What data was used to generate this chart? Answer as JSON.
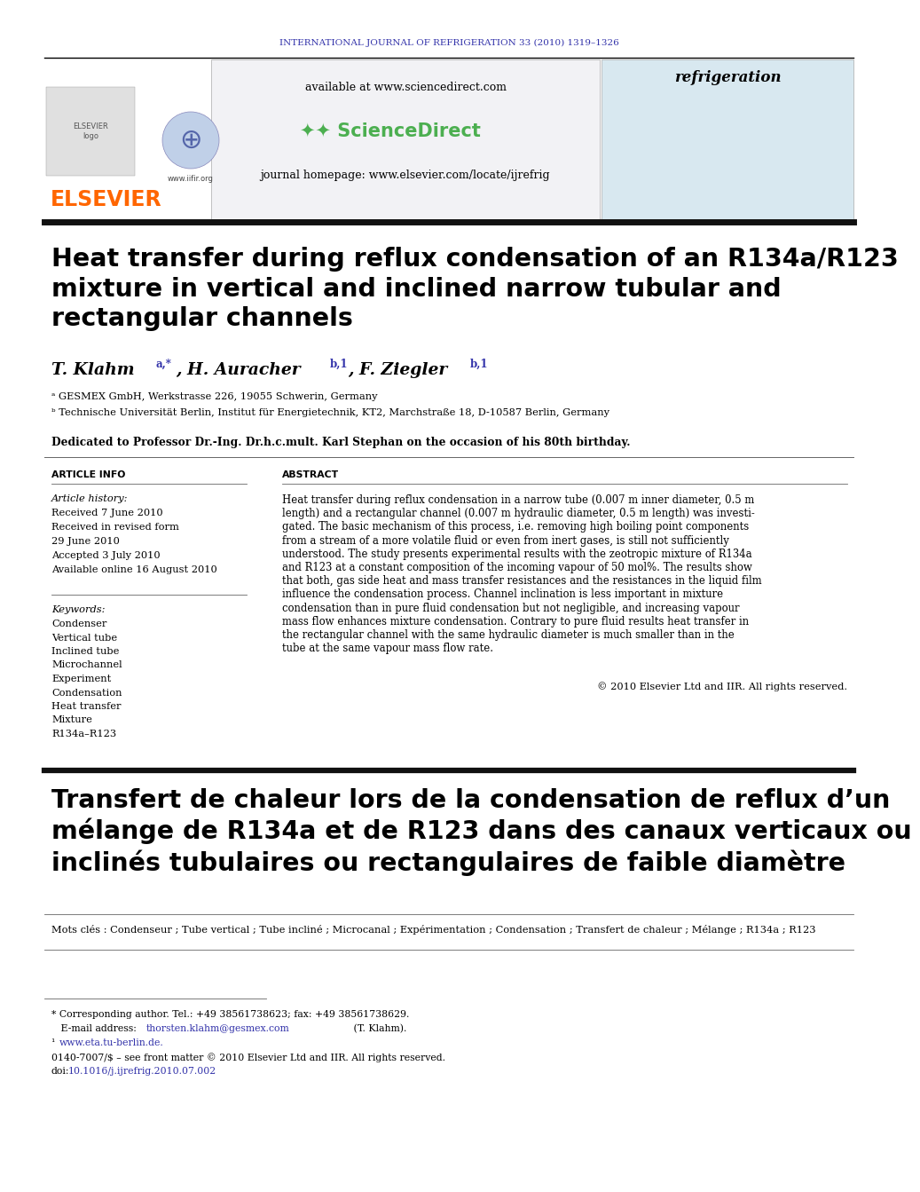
{
  "journal_header": "INTERNATIONAL JOURNAL OF REFRIGERATION 33 (2010) 1319–1326",
  "journal_header_color": "#3333aa",
  "title_en": "Heat transfer during reflux condensation of an R134a/R123\nmixture in vertical and inclined narrow tubular and\nrectangular channels",
  "affiliation_a": "ᵃ GESMEX GmbH, Werkstrasse 226, 19055 Schwerin, Germany",
  "affiliation_b": "ᵇ Technische Universität Berlin, Institut für Energietechnik, KT2, Marchstraße 18, D-10587 Berlin, Germany",
  "dedication": "Dedicated to Professor Dr.-Ing. Dr.h.c.mult. Karl Stephan on the occasion of his 80th birthday.",
  "article_info_label": "ARTICLE INFO",
  "abstract_label": "ABSTRACT",
  "article_history_label": "Article history:",
  "received": "Received 7 June 2010",
  "accepted": "Accepted 3 July 2010",
  "available": "Available online 16 August 2010",
  "keywords_label": "Keywords:",
  "keywords": [
    "Condenser",
    "Vertical tube",
    "Inclined tube",
    "Microchannel",
    "Experiment",
    "Condensation",
    "Heat transfer",
    "Mixture",
    "R134a–R123"
  ],
  "copyright": "© 2010 Elsevier Ltd and IIR. All rights reserved.",
  "title_fr": "Transfert de chaleur lors de la condensation de reflux d’un\nmélange de R134a et de R123 dans des canaux verticaux ou\ninclinés tubulaires ou rectangulaires de faible diamètre",
  "keywords_fr": "Mots clés : Condenseur ; Tube vertical ; Tube incliné ; Microcanal ; Expérimentation ; Condensation ; Transfert de chaleur ; Mélange ; R134a ; R123",
  "footnote_corresponding": "* Corresponding author. Tel.: +49 38561738623; fax: +49 38561738629.",
  "footnote_email_pre": "   E-mail address: ",
  "footnote_email_link": "thorsten.klahm@gesmex.com",
  "footnote_email_post": " (T. Klahm).",
  "footnote_www_pre": "¹ ",
  "footnote_www_link": "www.eta.tu-berlin.de.",
  "footnote_license": "0140-7007/$ – see front matter © 2010 Elsevier Ltd and IIR. All rights reserved.",
  "footnote_doi_pre": "doi:",
  "footnote_doi_link": "10.1016/j.ijrefrig.2010.07.002",
  "elsevier_color": "#FF6600",
  "sciencedirect_color": "#4CAF50",
  "available_url": "available at www.sciencedirect.com",
  "journal_homepage": "journal homepage: www.elsevier.com/locate/ijrefrig",
  "bg_color": "#ffffff",
  "link_color": "#3333aa",
  "abstract_lines": [
    "Heat transfer during reflux condensation in a narrow tube (0.007 m inner diameter, 0.5 m",
    "length) and a rectangular channel (0.007 m hydraulic diameter, 0.5 m length) was investi-",
    "gated. The basic mechanism of this process, i.e. removing high boiling point components",
    "from a stream of a more volatile fluid or even from inert gases, is still not sufficiently",
    "understood. The study presents experimental results with the zeotropic mixture of R134a",
    "and R123 at a constant composition of the incoming vapour of 50 mol%. The results show",
    "that both, gas side heat and mass transfer resistances and the resistances in the liquid film",
    "influence the condensation process. Channel inclination is less important in mixture",
    "condensation than in pure fluid condensation but not negligible, and increasing vapour",
    "mass flow enhances mixture condensation. Contrary to pure fluid results heat transfer in",
    "the rectangular channel with the same hydraulic diameter is much smaller than in the",
    "tube at the same vapour mass flow rate."
  ]
}
